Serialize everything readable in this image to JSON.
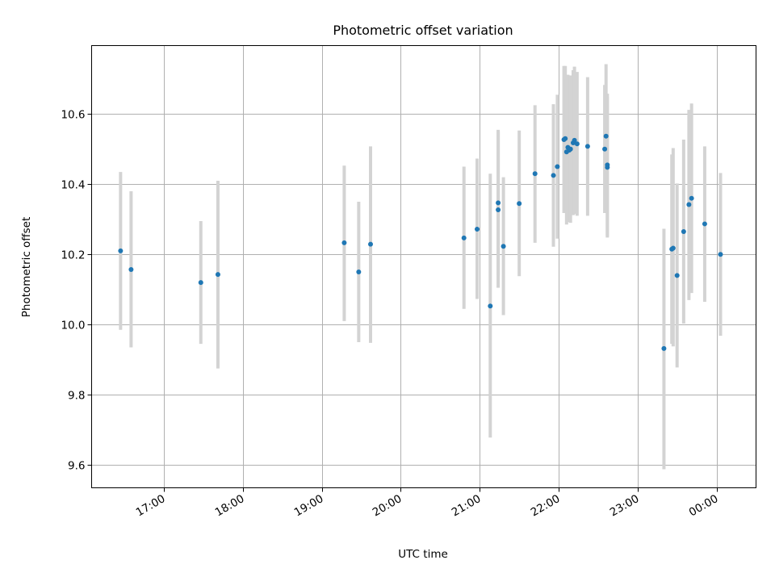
{
  "chart_data": {
    "type": "scatter",
    "title": "Photometric offset variation",
    "xlabel": "UTC time",
    "ylabel": "Photometric offset",
    "grid": true,
    "xlim": [
      "16:05",
      "00:30"
    ],
    "ylim": [
      9.535,
      10.795
    ],
    "xticks": [
      "17:00",
      "18:00",
      "19:00",
      "20:00",
      "21:00",
      "22:00",
      "23:00",
      "00:00"
    ],
    "yticks": [
      "9.6",
      "9.8",
      "10.0",
      "10.2",
      "10.4",
      "10.6"
    ],
    "colors": {
      "points": "#1f77b4",
      "errorbars": "#d3d3d3",
      "grid": "#b0b0b0"
    },
    "points": [
      {
        "t": "16:27",
        "y": 10.21,
        "lo": 9.985,
        "hi": 10.435
      },
      {
        "t": "16:35",
        "y": 10.157,
        "lo": 9.935,
        "hi": 10.38
      },
      {
        "t": "17:28",
        "y": 10.12,
        "lo": 9.945,
        "hi": 10.295
      },
      {
        "t": "17:41",
        "y": 10.143,
        "lo": 9.875,
        "hi": 10.41
      },
      {
        "t": "19:17",
        "y": 10.233,
        "lo": 10.01,
        "hi": 10.453
      },
      {
        "t": "19:28",
        "y": 10.15,
        "lo": 9.95,
        "hi": 10.35
      },
      {
        "t": "19:37",
        "y": 10.229,
        "lo": 9.948,
        "hi": 10.508
      },
      {
        "t": "20:48",
        "y": 10.247,
        "lo": 10.045,
        "hi": 10.45
      },
      {
        "t": "20:58",
        "y": 10.272,
        "lo": 10.073,
        "hi": 10.473
      },
      {
        "t": "21:08",
        "y": 10.053,
        "lo": 9.678,
        "hi": 10.43
      },
      {
        "t": "21:14",
        "y": 10.347,
        "lo": 10.14,
        "hi": 10.555
      },
      {
        "t": "21:14",
        "y": 10.327,
        "lo": 10.105,
        "hi": 10.55
      },
      {
        "t": "21:18",
        "y": 10.223,
        "lo": 10.027,
        "hi": 10.42
      },
      {
        "t": "21:30",
        "y": 10.345,
        "lo": 10.138,
        "hi": 10.553
      },
      {
        "t": "21:42",
        "y": 10.43,
        "lo": 10.233,
        "hi": 10.625
      },
      {
        "t": "21:56",
        "y": 10.425,
        "lo": 10.222,
        "hi": 10.628
      },
      {
        "t": "21:59",
        "y": 10.45,
        "lo": 10.245,
        "hi": 10.655
      },
      {
        "t": "22:04",
        "y": 10.527,
        "lo": 10.318,
        "hi": 10.737
      },
      {
        "t": "22:05",
        "y": 10.53,
        "lo": 10.323,
        "hi": 10.737
      },
      {
        "t": "22:06",
        "y": 10.492,
        "lo": 10.285,
        "hi": 10.7
      },
      {
        "t": "22:07",
        "y": 10.505,
        "lo": 10.298,
        "hi": 10.712
      },
      {
        "t": "22:08",
        "y": 10.497,
        "lo": 10.292,
        "hi": 10.703
      },
      {
        "t": "22:09",
        "y": 10.5,
        "lo": 10.29,
        "hi": 10.71
      },
      {
        "t": "22:11",
        "y": 10.518,
        "lo": 10.312,
        "hi": 10.725
      },
      {
        "t": "22:12",
        "y": 10.525,
        "lo": 10.315,
        "hi": 10.735
      },
      {
        "t": "22:14",
        "y": 10.515,
        "lo": 10.31,
        "hi": 10.72
      },
      {
        "t": "22:22",
        "y": 10.508,
        "lo": 10.31,
        "hi": 10.705
      },
      {
        "t": "22:35",
        "y": 10.5,
        "lo": 10.318,
        "hi": 10.683
      },
      {
        "t": "22:36",
        "y": 10.537,
        "lo": 10.332,
        "hi": 10.742
      },
      {
        "t": "22:37",
        "y": 10.455,
        "lo": 10.252,
        "hi": 10.658
      },
      {
        "t": "22:37",
        "y": 10.448,
        "lo": 10.248,
        "hi": 10.648
      },
      {
        "t": "23:20",
        "y": 9.932,
        "lo": 9.588,
        "hi": 10.273
      },
      {
        "t": "23:26",
        "y": 10.215,
        "lo": 9.945,
        "hi": 10.485
      },
      {
        "t": "23:27",
        "y": 10.218,
        "lo": 9.938,
        "hi": 10.503
      },
      {
        "t": "23:30",
        "y": 10.14,
        "lo": 9.878,
        "hi": 10.402
      },
      {
        "t": "23:35",
        "y": 10.265,
        "lo": 10.003,
        "hi": 10.527
      },
      {
        "t": "23:39",
        "y": 10.342,
        "lo": 10.07,
        "hi": 10.612
      },
      {
        "t": "23:41",
        "y": 10.36,
        "lo": 10.09,
        "hi": 10.63
      },
      {
        "t": "23:51",
        "y": 10.287,
        "lo": 10.065,
        "hi": 10.508
      },
      {
        "t": "00:03",
        "y": 10.2,
        "lo": 9.968,
        "hi": 10.432
      }
    ]
  }
}
